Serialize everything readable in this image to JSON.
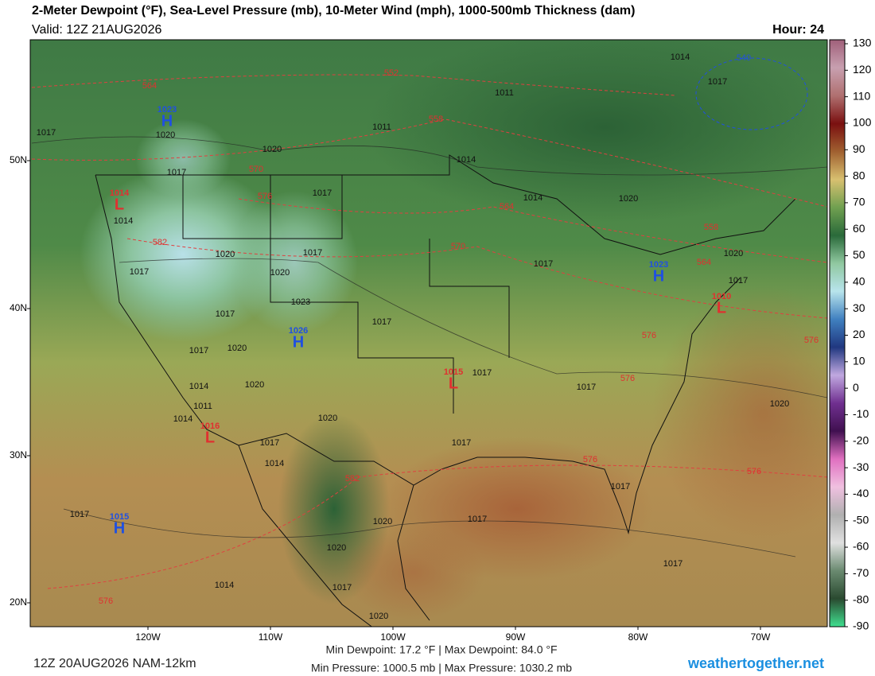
{
  "header": {
    "title": "2-Meter Dewpoint (°F), Sea-Level Pressure (mb), 10-Meter Wind (mph), 1000-500mb Thickness (dam)",
    "valid": "Valid: 12Z 21AUG2026",
    "hour": "Hour: 24"
  },
  "latitude_labels": [
    "50N",
    "40N",
    "30N",
    "20N"
  ],
  "longitude_labels": [
    "120W",
    "110W",
    "100W",
    "90W",
    "80W",
    "70W"
  ],
  "colorbar": {
    "ticks": [
      130,
      120,
      110,
      100,
      90,
      80,
      70,
      60,
      50,
      40,
      30,
      20,
      10,
      0,
      -10,
      -20,
      -30,
      -40,
      -50,
      -60,
      -70,
      -80,
      -90
    ]
  },
  "isobar_labels": [
    "1014",
    "1017",
    "1011",
    "1011",
    "1020",
    "1014",
    "1017",
    "1017",
    "1014",
    "1020",
    "1017",
    "1020",
    "1014",
    "1020",
    "1017",
    "1017",
    "1020",
    "1017",
    "1020",
    "1017",
    "1023",
    "1017",
    "1017",
    "1017",
    "1020",
    "1017",
    "1017",
    "1014",
    "1020",
    "1011",
    "1014",
    "1020",
    "1017",
    "1017",
    "1014",
    "1017",
    "1017",
    "1020",
    "1017",
    "1020",
    "1014",
    "1017",
    "1017",
    "1020",
    "1020"
  ],
  "thickness_labels": [
    "552",
    "564",
    "558",
    "570",
    "576",
    "564",
    "582",
    "570",
    "558",
    "564",
    "576",
    "576",
    "576",
    "576",
    "582",
    "576",
    "576",
    "540"
  ],
  "pressure_centers": [
    {
      "letter": "H",
      "pressure": "1023"
    },
    {
      "letter": "L",
      "pressure": "1014"
    },
    {
      "letter": "H",
      "pressure": "1026"
    },
    {
      "letter": "H",
      "pressure": "1023"
    },
    {
      "letter": "H",
      "pressure": "1015"
    },
    {
      "letter": "L",
      "pressure": "1015"
    },
    {
      "letter": "L",
      "pressure": "1016"
    },
    {
      "letter": "L",
      "pressure": "1010"
    }
  ],
  "footer": {
    "run": "12Z 20AUG2026 NAM-12km",
    "dewpoint": "Min Dewpoint:  17.2 °F | Max Dewpoint:  84.0 °F",
    "pressure": "Min Pressure: 1000.5 mb | Max Pressure: 1030.2 mb",
    "site": "weathertogether.net"
  }
}
